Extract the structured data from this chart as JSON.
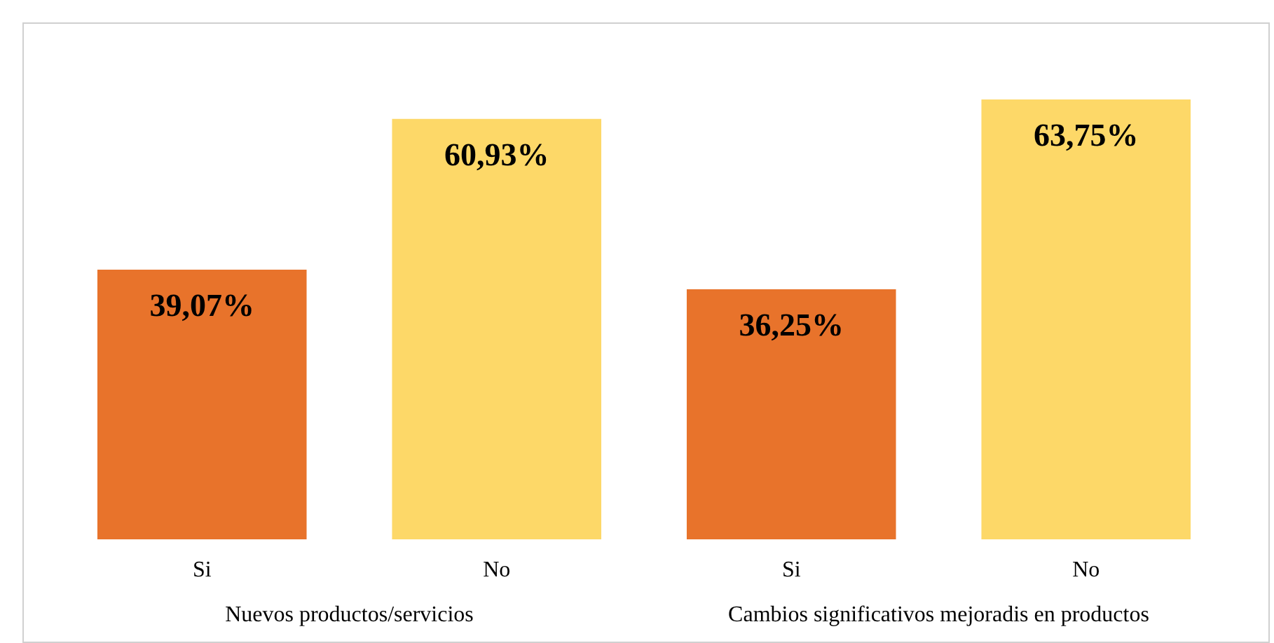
{
  "chart_data": {
    "type": "bar",
    "categories": [
      "Si",
      "No",
      "Si",
      "No"
    ],
    "values": [
      39.07,
      60.93,
      36.25,
      63.75
    ],
    "value_labels": [
      "39,07%",
      "60,93%",
      "36,25%",
      "63,75%"
    ],
    "colors": [
      "#e8732b",
      "#fdd868",
      "#e8732b",
      "#fdd868"
    ],
    "annotations": [
      "Nuevos productos/servicios",
      "Cambios significativos mejoradis en productos"
    ]
  }
}
